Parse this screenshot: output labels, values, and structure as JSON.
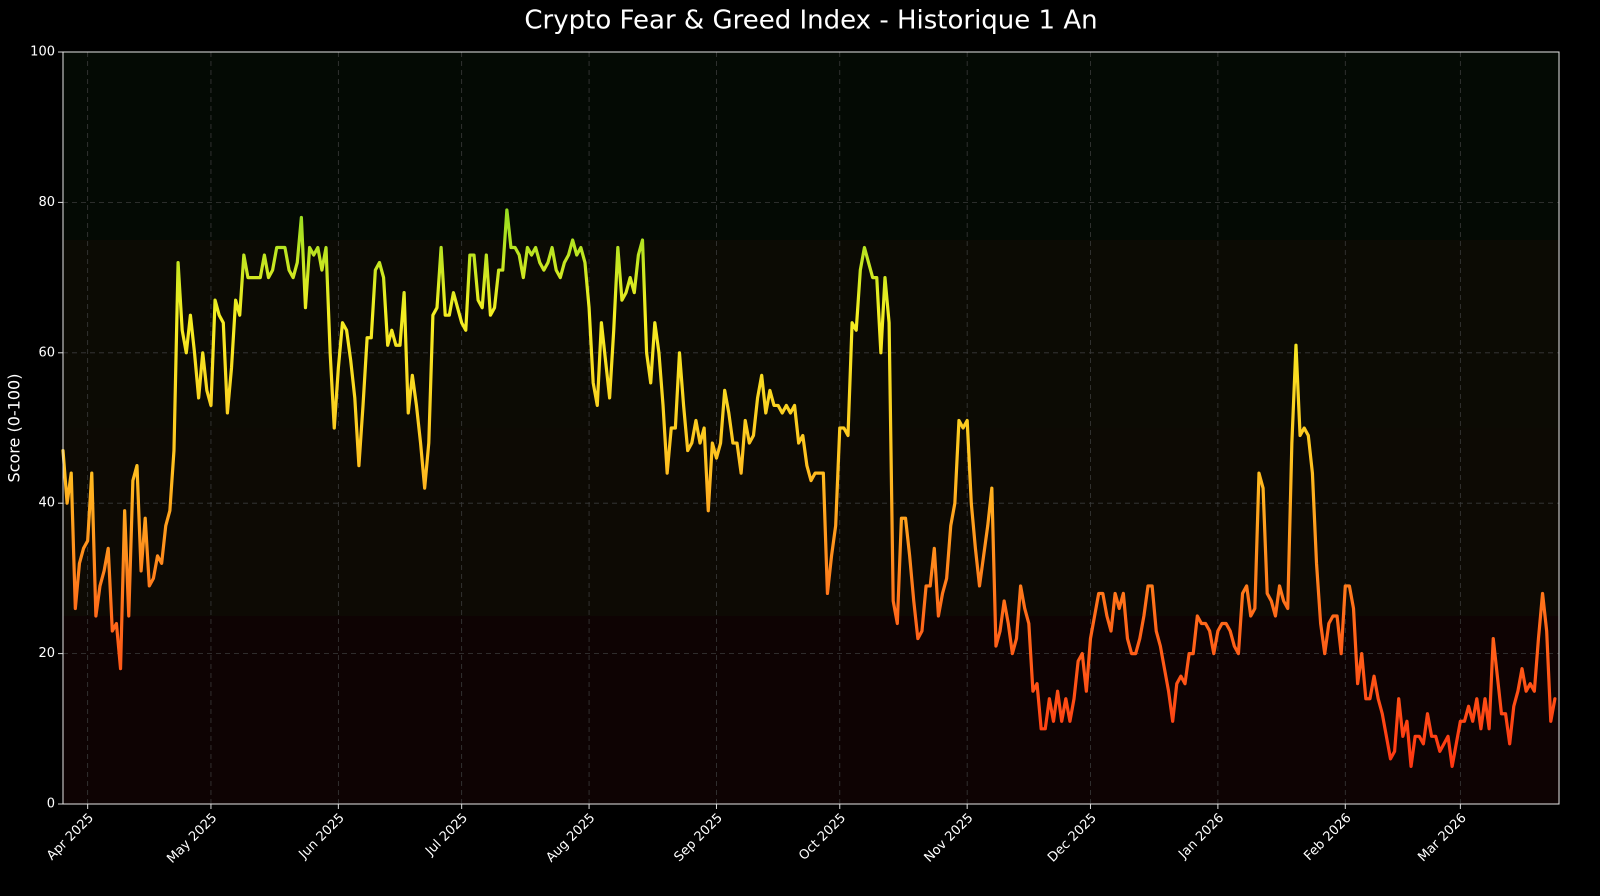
{
  "chart_data": {
    "type": "line",
    "title": "Crypto Fear & Greed Index - Historique 1 An",
    "y_label": "Score (0-100)",
    "xlim": [
      -6,
      358
    ],
    "ylim": [
      0,
      100
    ],
    "yticks": [
      0,
      20,
      40,
      60,
      80,
      100
    ],
    "xticks": [
      {
        "value": 0,
        "label": "Apr 2025"
      },
      {
        "value": 30,
        "label": "May 2025"
      },
      {
        "value": 61,
        "label": "Jun 2025"
      },
      {
        "value": 91,
        "label": "Jul 2025"
      },
      {
        "value": 122,
        "label": "Aug 2025"
      },
      {
        "value": 153,
        "label": "Sep 2025"
      },
      {
        "value": 183,
        "label": "Oct 2025"
      },
      {
        "value": 214,
        "label": "Nov 2025"
      },
      {
        "value": 244,
        "label": "Dec 2025"
      },
      {
        "value": 275,
        "label": "Jan 2026"
      },
      {
        "value": 306,
        "label": "Feb 2026"
      },
      {
        "value": 334,
        "label": "Mar 2026"
      }
    ],
    "grid": true,
    "zones": [
      {
        "from": 0,
        "to": 25,
        "color": "#0e0303"
      },
      {
        "from": 25,
        "to": 50,
        "color": "#0d0a04"
      },
      {
        "from": 50,
        "to": 75,
        "color": "#0c0b04"
      },
      {
        "from": 75,
        "to": 100,
        "color": "#040a04"
      }
    ],
    "colormap": [
      {
        "value": 0,
        "color": "#ff2a10"
      },
      {
        "value": 25,
        "color": "#ff6a1a"
      },
      {
        "value": 45,
        "color": "#ffc020"
      },
      {
        "value": 65,
        "color": "#f4ee22"
      },
      {
        "value": 80,
        "color": "#8fdc20"
      }
    ],
    "x": [
      -6,
      -5,
      -4,
      -3,
      -2,
      -1,
      0,
      1,
      2,
      3,
      4,
      5,
      6,
      7,
      8,
      9,
      10,
      11,
      12,
      13,
      14,
      15,
      16,
      17,
      18,
      19,
      20,
      21,
      22,
      23,
      24,
      25,
      26,
      27,
      28,
      29,
      30,
      31,
      32,
      33,
      34,
      35,
      36,
      37,
      38,
      39,
      40,
      41,
      42,
      43,
      44,
      45,
      46,
      47,
      48,
      49,
      50,
      51,
      52,
      53,
      54,
      55,
      56,
      57,
      58,
      59,
      60,
      61,
      62,
      63,
      64,
      65,
      66,
      67,
      68,
      69,
      70,
      71,
      72,
      73,
      74,
      75,
      76,
      77,
      78,
      79,
      80,
      81,
      82,
      83,
      84,
      85,
      86,
      87,
      88,
      89,
      90,
      91,
      92,
      93,
      94,
      95,
      96,
      97,
      98,
      99,
      100,
      101,
      102,
      103,
      104,
      105,
      106,
      107,
      108,
      109,
      110,
      111,
      112,
      113,
      114,
      115,
      116,
      117,
      118,
      119,
      120,
      121,
      122,
      123,
      124,
      125,
      126,
      127,
      128,
      129,
      130,
      131,
      132,
      133,
      134,
      135,
      136,
      137,
      138,
      139,
      140,
      141,
      142,
      143,
      144,
      145,
      146,
      147,
      148,
      149,
      150,
      151,
      152,
      153,
      154,
      155,
      156,
      157,
      158,
      159,
      160,
      161,
      162,
      163,
      164,
      165,
      166,
      167,
      168,
      169,
      170,
      171,
      172,
      173,
      174,
      175,
      176,
      177,
      178,
      179,
      180,
      181,
      182,
      183,
      184,
      185,
      186,
      187,
      188,
      189,
      190,
      191,
      192,
      193,
      194,
      195,
      196,
      197,
      198,
      199,
      200,
      201,
      202,
      203,
      204,
      205,
      206,
      207,
      208,
      209,
      210,
      211,
      212,
      213,
      214,
      215,
      216,
      217,
      218,
      219,
      220,
      221,
      222,
      223,
      224,
      225,
      226,
      227,
      228,
      229,
      230,
      231,
      232,
      233,
      234,
      235,
      236,
      237,
      238,
      239,
      240,
      241,
      242,
      243,
      244,
      245,
      246,
      247,
      248,
      249,
      250,
      251,
      252,
      253,
      254,
      255,
      256,
      257,
      258,
      259,
      260,
      261,
      262,
      263,
      264,
      265,
      266,
      267,
      268,
      269,
      270,
      271,
      272,
      273,
      274,
      275,
      276,
      277,
      278,
      279,
      280,
      281,
      282,
      283,
      284,
      285,
      286,
      287,
      288,
      289,
      290,
      291,
      292,
      293,
      294,
      295,
      296,
      297,
      298,
      299,
      300,
      301,
      302,
      303,
      304,
      305,
      306,
      307,
      308,
      309,
      310,
      311,
      312,
      313,
      314,
      315,
      316,
      317,
      318,
      319,
      320,
      321,
      322,
      323,
      324,
      325,
      326,
      327,
      328,
      329,
      330,
      331,
      332,
      333,
      334,
      335,
      336,
      337,
      338,
      339,
      340,
      341,
      342,
      343,
      344,
      345,
      346,
      347,
      348,
      349,
      350,
      351,
      352,
      353,
      354,
      355,
      356,
      357
    ],
    "values": [
      47,
      40,
      44,
      26,
      32,
      34,
      35,
      44,
      25,
      29,
      31,
      34,
      23,
      24,
      18,
      39,
      25,
      43,
      45,
      31,
      38,
      29,
      30,
      33,
      32,
      37,
      39,
      47,
      72,
      63,
      60,
      65,
      60,
      54,
      60,
      55,
      53,
      67,
      65,
      64,
      52,
      58,
      67,
      65,
      73,
      70,
      70,
      70,
      70,
      73,
      70,
      71,
      74,
      74,
      74,
      71,
      70,
      72,
      78,
      66,
      74,
      73,
      74,
      71,
      74,
      60,
      50,
      58,
      64,
      63,
      59,
      54,
      45,
      53,
      62,
      62,
      71,
      72,
      70,
      61,
      63,
      61,
      61,
      68,
      52,
      57,
      53,
      48,
      42,
      48,
      65,
      66,
      74,
      65,
      65,
      68,
      66,
      64,
      63,
      73,
      73,
      67,
      66,
      73,
      65,
      66,
      71,
      71,
      79,
      74,
      74,
      73,
      70,
      74,
      73,
      74,
      72,
      71,
      72,
      74,
      71,
      70,
      72,
      73,
      75,
      73,
      74,
      72,
      66,
      56,
      53,
      64,
      59,
      54,
      63,
      74,
      67,
      68,
      70,
      68,
      73,
      75,
      60,
      56,
      64,
      60,
      53,
      44,
      50,
      50,
      60,
      53,
      47,
      48,
      51,
      48,
      50,
      39,
      48,
      46,
      48,
      55,
      52,
      48,
      48,
      44,
      51,
      48,
      49,
      54,
      57,
      52,
      55,
      53,
      53,
      52,
      53,
      52,
      53,
      48,
      49,
      45,
      43,
      44,
      44,
      44,
      28,
      33,
      37,
      50,
      50,
      49,
      64,
      63,
      71,
      74,
      72,
      70,
      70,
      60,
      70,
      64,
      27,
      24,
      38,
      38,
      33,
      27,
      22,
      23,
      29,
      29,
      34,
      25,
      28,
      30,
      37,
      40,
      51,
      50,
      51,
      40,
      34,
      29,
      33,
      37,
      42,
      21,
      23,
      27,
      24,
      20,
      22,
      29,
      26,
      24,
      15,
      16,
      10,
      10,
      14,
      11,
      15,
      11,
      14,
      11,
      14,
      19,
      20,
      15,
      22,
      25,
      28,
      28,
      25,
      23,
      28,
      26,
      28,
      22,
      20,
      20,
      22,
      25,
      29,
      29,
      23,
      21,
      18,
      15,
      11,
      16,
      17,
      16,
      20,
      20,
      25,
      24,
      24,
      23,
      20,
      23,
      24,
      24,
      23,
      21,
      20,
      28,
      29,
      25,
      26,
      44,
      42,
      28,
      27,
      25,
      29,
      27,
      26,
      48,
      61,
      49,
      50,
      49,
      44,
      32,
      24,
      20,
      24,
      25,
      25,
      20,
      29,
      29,
      26,
      16,
      20,
      14,
      14,
      17,
      14,
      12,
      9,
      6,
      7,
      14,
      9,
      11,
      5,
      9,
      9,
      8,
      12,
      9,
      9,
      7,
      8,
      9,
      5,
      8,
      11,
      11,
      13,
      11,
      14,
      10,
      14,
      10,
      22,
      17,
      12,
      12,
      8,
      13,
      15,
      18,
      15,
      16,
      15,
      22,
      28,
      23,
      11,
      14
    ]
  }
}
